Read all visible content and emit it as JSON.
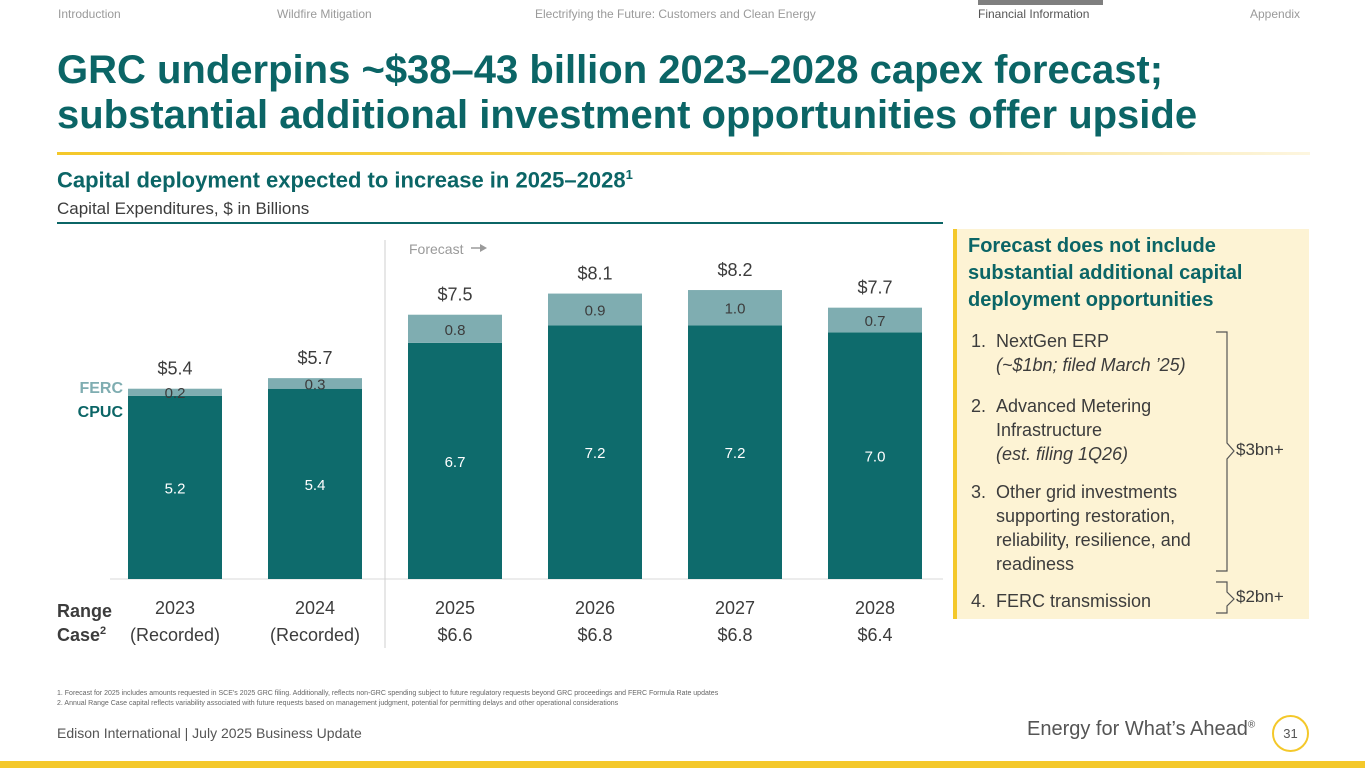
{
  "nav": {
    "items": [
      {
        "label": "Introduction",
        "active": false
      },
      {
        "label": "Wildfire Mitigation",
        "active": false
      },
      {
        "label": "Electrifying the Future: Customers and Clean Energy",
        "active": false
      },
      {
        "label": "Financial Information",
        "active": true
      },
      {
        "label": "Appendix",
        "active": false
      }
    ]
  },
  "title": "GRC underpins ~$38–43 billion 2023–2028 capex forecast; substantial additional investment opportunities offer upside",
  "chart_section": {
    "subtitle": "Capital deployment expected to increase in 2025–2028",
    "subtitle_sup": "1",
    "unit_label": "Capital Expenditures, $ in Billions"
  },
  "chart_data": {
    "type": "bar",
    "stacked": true,
    "categories": [
      "2023",
      "2024",
      "2025",
      "2026",
      "2027",
      "2028"
    ],
    "category_sublabels": [
      "(Recorded)",
      "(Recorded)",
      "$6.6",
      "$6.8",
      "$6.8",
      "$6.4"
    ],
    "series": [
      {
        "name": "CPUC",
        "color": "#0e6b6c",
        "values": [
          5.2,
          5.4,
          6.7,
          7.2,
          7.2,
          7.0
        ],
        "labels": [
          "5.2",
          "5.4",
          "6.7",
          "7.2",
          "7.2",
          "7.0"
        ]
      },
      {
        "name": "FERC",
        "color": "#7fadb1",
        "values": [
          0.2,
          0.3,
          0.8,
          0.9,
          1.0,
          0.7
        ],
        "labels": [
          "0.2",
          "0.3",
          "0.8",
          "0.9",
          "1.0",
          "0.7"
        ]
      }
    ],
    "totals": [
      "$5.4",
      "$5.7",
      "$7.5",
      "$8.1",
      "$8.2",
      "$7.7"
    ],
    "ylim": [
      0,
      8.4
    ],
    "forecast_label": "Forecast",
    "forecast_start_category": "2025",
    "range_case_label": "Range",
    "range_case_label_2": "Case",
    "range_case_sup": "2",
    "legend": [
      "FERC",
      "CPUC"
    ]
  },
  "panel": {
    "heading": "Forecast does not include substantial additional capital deployment opportunities",
    "items": [
      {
        "number": "1.",
        "text": "NextGen ERP",
        "note": "(~$1bn; filed March ’25)"
      },
      {
        "number": "2.",
        "text": "Advanced Metering Infrastructure",
        "note": "(est. filing 1Q26)"
      },
      {
        "number": "3.",
        "text": "Other grid investments supporting restoration, reliability, resilience, and readiness",
        "note": ""
      },
      {
        "number": "4.",
        "text": "FERC transmission",
        "note": ""
      }
    ],
    "bracket_main": "$3bn+",
    "bracket_ferc": "$2bn+"
  },
  "footnotes": [
    "1.  Forecast for 2025 includes amounts requested in SCE’s 2025 GRC filing. Additionally, reflects non-GRC spending subject to future regulatory requests beyond GRC proceedings and FERC Formula Rate updates",
    "2.  Annual Range Case capital reflects variability associated with future requests based on management judgment, potential for permitting delays and other operational considerations"
  ],
  "footer": {
    "left": "Edison International |  July 2025 Business Update",
    "tagline": "Energy for What’s Ahead",
    "tagline_mark": "®",
    "page_number": "31"
  },
  "colors": {
    "brand_teal": "#0b6566",
    "accent_yellow": "#f4c82a",
    "ferc_bar": "#7fadb1",
    "cpuc_bar": "#0e6b6c"
  }
}
